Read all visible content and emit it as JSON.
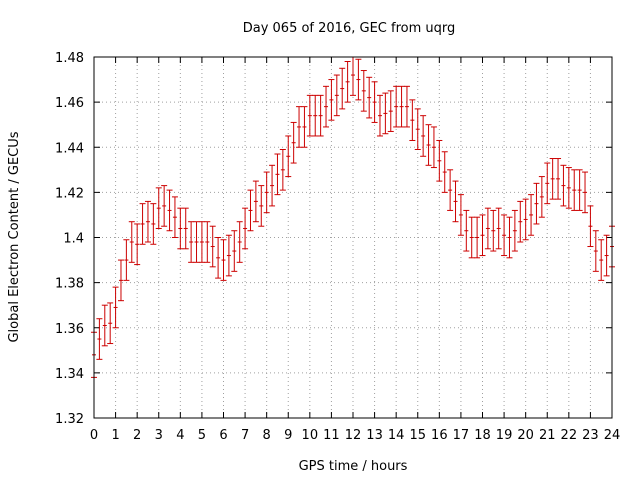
{
  "chart_data": {
    "type": "scatter",
    "title": "Day 065 of 2016, GEC from uqrg",
    "xlabel": "GPS time / hours",
    "ylabel": "Global Electron Content / GECUs",
    "xlim": [
      0,
      24
    ],
    "ylim": [
      1.32,
      1.48
    ],
    "xticks": [
      "0",
      "1",
      "2",
      "3",
      "4",
      "5",
      "6",
      "7",
      "8",
      "9",
      "10",
      "11",
      "12",
      "13",
      "14",
      "15",
      "16",
      "17",
      "18",
      "19",
      "20",
      "21",
      "22",
      "23",
      "24"
    ],
    "yticks": [
      "1.32",
      "1.34",
      "1.36",
      "1.38",
      "1.4",
      "1.42",
      "1.44",
      "1.46",
      "1.48"
    ],
    "grid": true,
    "series_color": "#cc0000",
    "series": [
      {
        "x": [
          0.0,
          0.25,
          0.5,
          0.75,
          1.0,
          1.25,
          1.5,
          1.75,
          2.0,
          2.25,
          2.5,
          2.75,
          3.0,
          3.25,
          3.5,
          3.75,
          4.0,
          4.25,
          4.5,
          4.75,
          5.0,
          5.25,
          5.5,
          5.75,
          6.0,
          6.25,
          6.5,
          6.75,
          7.0,
          7.25,
          7.5,
          7.75,
          8.0,
          8.25,
          8.5,
          8.75,
          9.0,
          9.25,
          9.5,
          9.75,
          10.0,
          10.25,
          10.5,
          10.75,
          11.0,
          11.25,
          11.5,
          11.75,
          12.0,
          12.25,
          12.5,
          12.75,
          13.0,
          13.25,
          13.5,
          13.75,
          14.0,
          14.25,
          14.5,
          14.75,
          15.0,
          15.25,
          15.5,
          15.75,
          16.0,
          16.25,
          16.5,
          16.75,
          17.0,
          17.25,
          17.5,
          17.75,
          18.0,
          18.25,
          18.5,
          18.75,
          19.0,
          19.25,
          19.5,
          19.75,
          20.0,
          20.25,
          20.5,
          20.75,
          21.0,
          21.25,
          21.5,
          21.75,
          22.0,
          22.25,
          22.5,
          22.75,
          23.0,
          23.25,
          23.5,
          23.75,
          24.0
        ],
        "y": [
          1.348,
          1.355,
          1.361,
          1.362,
          1.369,
          1.381,
          1.39,
          1.398,
          1.397,
          1.406,
          1.407,
          1.406,
          1.413,
          1.414,
          1.412,
          1.409,
          1.404,
          1.404,
          1.398,
          1.398,
          1.398,
          1.398,
          1.396,
          1.391,
          1.39,
          1.392,
          1.394,
          1.398,
          1.404,
          1.412,
          1.416,
          1.414,
          1.42,
          1.423,
          1.428,
          1.43,
          1.436,
          1.442,
          1.449,
          1.449,
          1.454,
          1.454,
          1.454,
          1.458,
          1.461,
          1.463,
          1.466,
          1.469,
          1.472,
          1.47,
          1.465,
          1.462,
          1.46,
          1.454,
          1.455,
          1.456,
          1.458,
          1.458,
          1.458,
          1.452,
          1.448,
          1.445,
          1.441,
          1.44,
          1.434,
          1.429,
          1.421,
          1.416,
          1.41,
          1.403,
          1.4,
          1.4,
          1.401,
          1.404,
          1.403,
          1.404,
          1.401,
          1.4,
          1.403,
          1.407,
          1.408,
          1.41,
          1.415,
          1.418,
          1.424,
          1.426,
          1.426,
          1.423,
          1.422,
          1.421,
          1.421,
          1.42,
          1.405,
          1.394,
          1.39,
          1.392,
          1.396
        ],
        "error": [
          0.01,
          0.009,
          0.009,
          0.009,
          0.009,
          0.009,
          0.009,
          0.009,
          0.009,
          0.009,
          0.009,
          0.009,
          0.009,
          0.009,
          0.009,
          0.009,
          0.009,
          0.009,
          0.009,
          0.009,
          0.009,
          0.009,
          0.009,
          0.009,
          0.009,
          0.009,
          0.009,
          0.009,
          0.009,
          0.009,
          0.009,
          0.009,
          0.009,
          0.009,
          0.009,
          0.009,
          0.009,
          0.009,
          0.009,
          0.009,
          0.009,
          0.009,
          0.009,
          0.009,
          0.009,
          0.009,
          0.009,
          0.009,
          0.009,
          0.009,
          0.009,
          0.009,
          0.009,
          0.009,
          0.009,
          0.009,
          0.009,
          0.009,
          0.009,
          0.009,
          0.009,
          0.009,
          0.009,
          0.009,
          0.009,
          0.009,
          0.009,
          0.009,
          0.009,
          0.009,
          0.009,
          0.009,
          0.009,
          0.009,
          0.009,
          0.009,
          0.009,
          0.009,
          0.009,
          0.009,
          0.009,
          0.009,
          0.009,
          0.009,
          0.009,
          0.009,
          0.009,
          0.009,
          0.009,
          0.009,
          0.009,
          0.009,
          0.009,
          0.009,
          0.009,
          0.009,
          0.009
        ]
      }
    ]
  }
}
